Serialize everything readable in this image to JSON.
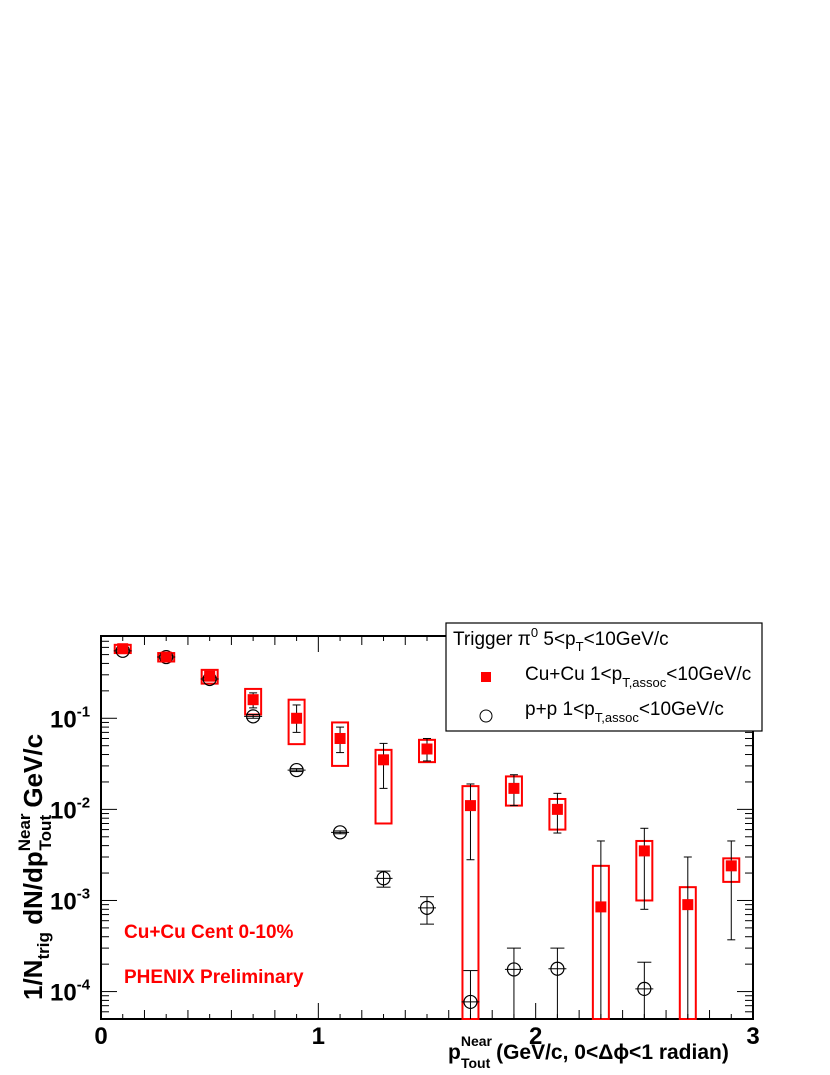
{
  "chart_data": {
    "type": "scatter",
    "y_scale": "log",
    "xlim": [
      0,
      3
    ],
    "ylim": [
      5e-05,
      0.8
    ],
    "x_tick_labels": [
      "0",
      "1",
      "2",
      "3"
    ],
    "x_ticks": [
      0,
      1,
      2,
      3
    ],
    "y_ticks": [
      0.1,
      0.01,
      0.001,
      0.0001
    ],
    "y_tick_labels": [
      {
        "base": "10",
        "exp": "-1"
      },
      {
        "base": "10",
        "exp": "-2"
      },
      {
        "base": "10",
        "exp": "-3"
      },
      {
        "base": "10",
        "exp": "-4"
      }
    ],
    "xlabel": {
      "main": "p",
      "sup": "Near",
      "sub": "Tout",
      "rest": " (GeV/c, 0<Δϕ<1 radian)"
    },
    "ylabel": {
      "pre": "1/N",
      "sub1": "trig",
      "mid": " dN/dp",
      "sup": "Near",
      "sub2": "Tout",
      "post": " GeV/c"
    },
    "legend": {
      "position": "top-right",
      "header": {
        "pre": "Trigger π",
        "sup": "0",
        "mid": " 5<p",
        "sub": "T",
        "post": "<10GeV/c"
      },
      "entries": [
        {
          "marker": "filled-square",
          "pre": "Cu+Cu 1<p",
          "sub": "T,assoc",
          "post": "<10GeV/c"
        },
        {
          "marker": "open-circle",
          "pre": "p+p 1<p",
          "sub": "T,assoc",
          "post": "<10GeV/c"
        }
      ]
    },
    "annotations": [
      "Cu+Cu Cent 0-10%",
      "PHENIX Preliminary"
    ],
    "colors": {
      "cucu": "#ff0000",
      "pp": "#000000",
      "frame": "#000000"
    },
    "series": [
      {
        "name": "Cu+Cu 1<pT,assoc<10GeV/c",
        "points": [
          {
            "x": 0.1,
            "y": 0.58,
            "err_lo": 0.56,
            "err_hi": 0.6,
            "sys_lo": 0.52,
            "sys_hi": 0.64
          },
          {
            "x": 0.3,
            "y": 0.47,
            "err_lo": 0.45,
            "err_hi": 0.49,
            "sys_lo": 0.42,
            "sys_hi": 0.52
          },
          {
            "x": 0.5,
            "y": 0.29,
            "err_lo": 0.27,
            "err_hi": 0.31,
            "sys_lo": 0.24,
            "sys_hi": 0.34
          },
          {
            "x": 0.7,
            "y": 0.16,
            "err_lo": 0.13,
            "err_hi": 0.19,
            "sys_lo": 0.11,
            "sys_hi": 0.21
          },
          {
            "x": 0.9,
            "y": 0.1,
            "err_lo": 0.07,
            "err_hi": 0.14,
            "sys_lo": 0.052,
            "sys_hi": 0.16
          },
          {
            "x": 1.1,
            "y": 0.06,
            "err_lo": 0.042,
            "err_hi": 0.08,
            "sys_lo": 0.03,
            "sys_hi": 0.09
          },
          {
            "x": 1.3,
            "y": 0.035,
            "err_lo": 0.017,
            "err_hi": 0.053,
            "sys_lo": 0.007,
            "sys_hi": 0.045
          },
          {
            "x": 1.5,
            "y": 0.046,
            "err_lo": 0.034,
            "err_hi": 0.06,
            "sys_lo": 0.033,
            "sys_hi": 0.058
          },
          {
            "x": 1.7,
            "y": 0.011,
            "err_lo": 0.0028,
            "err_hi": 0.019,
            "sys_lo": 5e-05,
            "sys_hi": 0.018
          },
          {
            "x": 1.9,
            "y": 0.017,
            "err_lo": 0.011,
            "err_hi": 0.024,
            "sys_lo": 0.011,
            "sys_hi": 0.023
          },
          {
            "x": 2.1,
            "y": 0.01,
            "err_lo": 0.0055,
            "err_hi": 0.015,
            "sys_lo": 0.006,
            "sys_hi": 0.013
          },
          {
            "x": 2.3,
            "y": 0.00085,
            "err_lo": 5e-05,
            "err_hi": 0.0045,
            "sys_lo": 5e-05,
            "sys_hi": 0.0024
          },
          {
            "x": 2.5,
            "y": 0.0035,
            "err_lo": 0.0008,
            "err_hi": 0.0062,
            "sys_lo": 0.001,
            "sys_hi": 0.0045
          },
          {
            "x": 2.7,
            "y": 0.0009,
            "err_lo": 5e-05,
            "err_hi": 0.003,
            "sys_lo": 5e-05,
            "sys_hi": 0.0014
          },
          {
            "x": 2.9,
            "y": 0.0024,
            "err_lo": 0.00037,
            "err_hi": 0.0045,
            "sys_lo": 0.0016,
            "sys_hi": 0.0029
          }
        ]
      },
      {
        "name": "p+p 1<pT,assoc<10GeV/c",
        "points": [
          {
            "x": 0.1,
            "y": 0.55,
            "err_lo": 0.53,
            "err_hi": 0.57
          },
          {
            "x": 0.3,
            "y": 0.47,
            "err_lo": 0.45,
            "err_hi": 0.49
          },
          {
            "x": 0.5,
            "y": 0.27,
            "err_lo": 0.26,
            "err_hi": 0.28
          },
          {
            "x": 0.7,
            "y": 0.105,
            "err_lo": 0.1,
            "err_hi": 0.11
          },
          {
            "x": 0.9,
            "y": 0.027,
            "err_lo": 0.026,
            "err_hi": 0.028
          },
          {
            "x": 1.1,
            "y": 0.0056,
            "err_lo": 0.0054,
            "err_hi": 0.0058
          },
          {
            "x": 1.3,
            "y": 0.00175,
            "err_lo": 0.0014,
            "err_hi": 0.0021
          },
          {
            "x": 1.5,
            "y": 0.00083,
            "err_lo": 0.00055,
            "err_hi": 0.0011
          },
          {
            "x": 1.7,
            "y": 7.7e-05,
            "err_lo": 5e-05,
            "err_hi": 0.00017
          },
          {
            "x": 1.9,
            "y": 0.000175,
            "err_lo": 5e-05,
            "err_hi": 0.0003
          },
          {
            "x": 2.1,
            "y": 0.000178,
            "err_lo": 5e-05,
            "err_hi": 0.0003
          },
          {
            "x": 2.5,
            "y": 0.000107,
            "err_lo": 5e-05,
            "err_hi": 0.00021
          }
        ]
      }
    ]
  }
}
